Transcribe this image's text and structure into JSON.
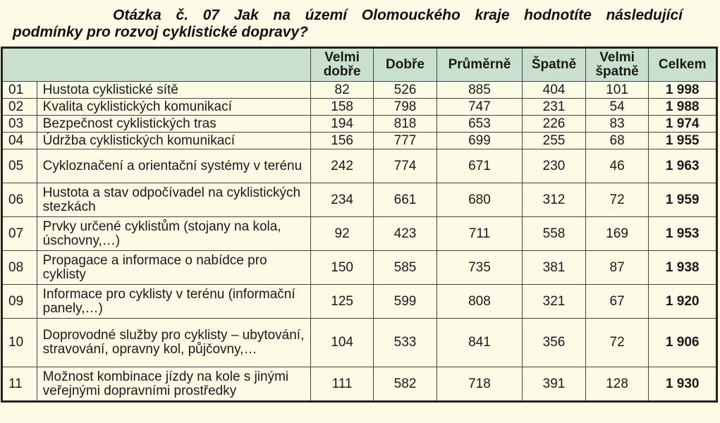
{
  "title": {
    "line1": "Otázka č. 07 Jak na území Olomouckého kraje hodnotíte následující",
    "line2": "podmínky pro rozvoj cyklistické dopravy?"
  },
  "headers": [
    "",
    "Velmi dobře",
    "Dobře",
    "Průměrně",
    "Špatně",
    "Velmi špatně",
    "Celkem"
  ],
  "rows": [
    {
      "id": "01",
      "label": "Hustota cyklistické sítě",
      "values": [
        "82",
        "526",
        "885",
        "404",
        "101"
      ],
      "total": "1 998"
    },
    {
      "id": "02",
      "label": "Kvalita cyklistických komunikací",
      "values": [
        "158",
        "798",
        "747",
        "231",
        "54"
      ],
      "total": "1 988"
    },
    {
      "id": "03",
      "label": "Bezpečnost cyklistických tras",
      "values": [
        "194",
        "818",
        "653",
        "226",
        "83"
      ],
      "total": "1 974"
    },
    {
      "id": "04",
      "label": "Údržba cyklistických komunikací",
      "values": [
        "156",
        "777",
        "699",
        "255",
        "68"
      ],
      "total": "1 955"
    },
    {
      "id": "05",
      "label": "Cykloznačení a orientační systémy v terénu",
      "values": [
        "242",
        "774",
        "671",
        "230",
        "46"
      ],
      "total": "1 963"
    },
    {
      "id": "06",
      "label": "Hustota a stav odpočívadel na cyklistických stezkách",
      "values": [
        "234",
        "661",
        "680",
        "312",
        "72"
      ],
      "total": "1 959"
    },
    {
      "id": "07",
      "label": "Prvky určené cyklistům (stojany na kola, úschovny,…)",
      "values": [
        "92",
        "423",
        "711",
        "558",
        "169"
      ],
      "total": "1 953"
    },
    {
      "id": "08",
      "label": "Propagace a informace o nabídce pro cyklisty",
      "values": [
        "150",
        "585",
        "735",
        "381",
        "87"
      ],
      "total": "1 938"
    },
    {
      "id": "09",
      "label": "Informace pro cyklisty v terénu (informační panely,…)",
      "values": [
        "125",
        "599",
        "808",
        "321",
        "67"
      ],
      "total": "1 920"
    },
    {
      "id": "10",
      "label": "Doprovodné služby pro cyklisty – ubytování, stravování, opravny kol, půjčovny,…",
      "values": [
        "104",
        "533",
        "841",
        "356",
        "72"
      ],
      "total": "1 906"
    },
    {
      "id": "11",
      "label": "Možnost kombinace jízdy na kole s jinými veřejnými dopravními prostředky",
      "values": [
        "111",
        "582",
        "718",
        "391",
        "128"
      ],
      "total": "1 930"
    }
  ]
}
